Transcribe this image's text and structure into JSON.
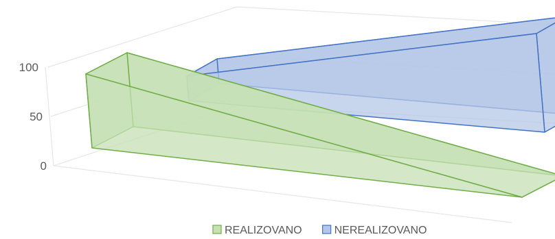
{
  "chart_data": {
    "type": "area",
    "title": "",
    "subtitle": "",
    "xlabel": "",
    "ylabel": "",
    "ylim": [
      0,
      100
    ],
    "yticks": [
      0,
      50,
      100
    ],
    "grid": true,
    "legend": "bottom",
    "series": [
      {
        "name": "REALIZOVANO",
        "values": [
          75,
          0
        ],
        "color": "#70ad47",
        "fill": "#c5e0b4"
      },
      {
        "name": "NEREALIZOVANO",
        "values": [
          25,
          100
        ],
        "color": "#4472c4",
        "fill": "#b4c7e7"
      }
    ]
  }
}
